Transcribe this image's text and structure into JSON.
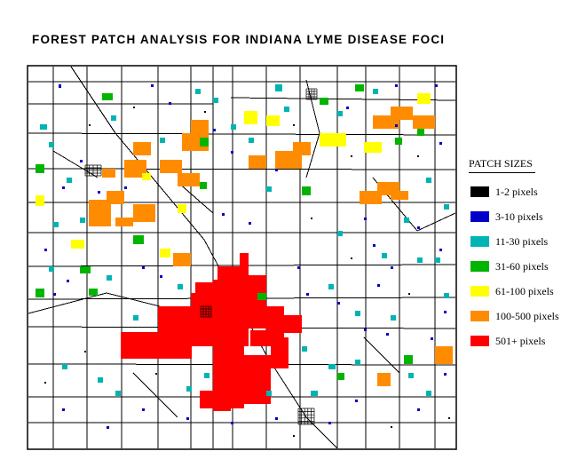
{
  "title": "FOREST PATCH ANALYSIS FOR INDIANA LYME DISEASE FOCI",
  "legend": {
    "title": "PATCH SIZES",
    "items": [
      {
        "label": "1-2 pixels",
        "color": "#000000"
      },
      {
        "label": "3-10 pixels",
        "color": "#0000c8"
      },
      {
        "label": "11-30 pixels",
        "color": "#00b4b4"
      },
      {
        "label": "31-60 pixels",
        "color": "#00b400"
      },
      {
        "label": "61-100 pixels",
        "color": "#ffff00"
      },
      {
        "label": "100-500 pixels",
        "color": "#ff8c00"
      },
      {
        "label": "501+ pixels",
        "color": "#ff0000"
      }
    ]
  }
}
